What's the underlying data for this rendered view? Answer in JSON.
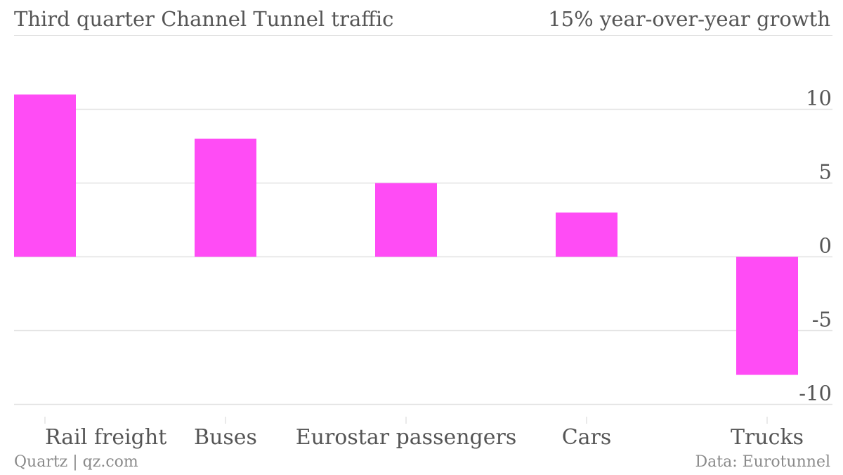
{
  "header": {
    "title": "Third quarter Channel Tunnel traffic",
    "subtitle": "15% year-over-year growth"
  },
  "footer": {
    "credit": "Quartz | qz.com",
    "source": "Data: Eurotunnel"
  },
  "chart_data": {
    "type": "bar",
    "title": "Third quarter Channel Tunnel traffic",
    "subtitle": "15% year-over-year growth",
    "categories": [
      "Rail freight",
      "Buses",
      "Eurostar passengers",
      "Cars",
      "Trucks"
    ],
    "values": [
      11,
      8,
      5,
      3,
      -8
    ],
    "ylim": [
      -10,
      10
    ],
    "yticks": [
      10,
      5,
      0,
      -5,
      -10
    ],
    "ytick_labels": [
      "10",
      "5",
      "0",
      "-5",
      "-10"
    ],
    "grid": true,
    "y_axis_side": "right",
    "colors": {
      "bar": "#ff4cf5",
      "grid": "#e2e2e2",
      "text": "#555555",
      "muted": "#8a8a8a"
    }
  }
}
